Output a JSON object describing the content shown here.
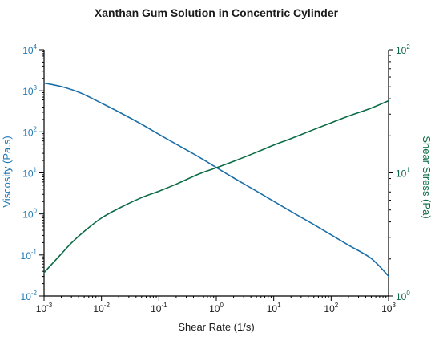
{
  "chart_data": {
    "type": "line",
    "title": "Xanthan Gum Solution in Concentric Cylinder",
    "xlabel": "Shear Rate (1/s)",
    "ylabel_left": "Viscosity (Pa.s)",
    "ylabel_right": "Shear Stress (Pa)",
    "x_scale": "log",
    "y_left_scale": "log",
    "y_right_scale": "log",
    "xlim": [
      0.001,
      1000
    ],
    "ylim_left": [
      0.01,
      10000
    ],
    "ylim_right": [
      1,
      100
    ],
    "x_ticks": [
      {
        "base": "10",
        "exp": "-3",
        "value": 0.001
      },
      {
        "base": "10",
        "exp": "-2",
        "value": 0.01
      },
      {
        "base": "10",
        "exp": "-1",
        "value": 0.1
      },
      {
        "base": "10",
        "exp": "0",
        "value": 1
      },
      {
        "base": "10",
        "exp": "1",
        "value": 10
      },
      {
        "base": "10",
        "exp": "2",
        "value": 100
      },
      {
        "base": "10",
        "exp": "3",
        "value": 1000
      }
    ],
    "y_left_ticks": [
      {
        "base": "10",
        "exp": "4",
        "value": 10000
      },
      {
        "base": "10",
        "exp": "3",
        "value": 1000
      },
      {
        "base": "10",
        "exp": "2",
        "value": 100
      },
      {
        "base": "10",
        "exp": "1",
        "value": 10
      },
      {
        "base": "10",
        "exp": "0",
        "value": 1
      },
      {
        "base": "10",
        "exp": "-1",
        "value": 0.1
      },
      {
        "base": "10",
        "exp": "-2",
        "value": 0.01
      }
    ],
    "y_right_ticks": [
      {
        "base": "10",
        "exp": "2",
        "value": 100
      },
      {
        "base": "10",
        "exp": "1",
        "value": 10
      },
      {
        "base": "10",
        "exp": "0",
        "value": 1
      }
    ],
    "grid": false,
    "colors": {
      "left_axis": "#1f78b4",
      "right_axis": "#0b6b45",
      "axes": "#000000",
      "title": "#1a1a1a"
    },
    "series": [
      {
        "axis": "left",
        "color": "#1b6fa8",
        "x": [
          0.001,
          0.002,
          0.003,
          0.005,
          0.01,
          0.02,
          0.05,
          0.1,
          0.2,
          0.5,
          1,
          2,
          5,
          10,
          20,
          50,
          100,
          200,
          500,
          1000
        ],
        "y": [
          1550,
          1270,
          1070,
          810,
          500,
          306,
          153,
          87,
          50,
          24.3,
          13.5,
          7.55,
          3.6,
          2.03,
          1.15,
          0.55,
          0.31,
          0.174,
          0.082,
          0.0305
        ]
      },
      {
        "axis": "right",
        "color": "#0b6b45",
        "x": [
          0.001,
          0.002,
          0.003,
          0.005,
          0.01,
          0.02,
          0.05,
          0.1,
          0.2,
          0.5,
          1,
          2,
          5,
          10,
          20,
          50,
          100,
          200,
          500,
          1000
        ],
        "y": [
          1.55,
          2.2,
          2.7,
          3.35,
          4.3,
          5.15,
          6.3,
          7.1,
          8.1,
          9.8,
          11.0,
          12.4,
          14.7,
          16.8,
          19.0,
          22.5,
          25.5,
          28.9,
          33.6,
          38.5
        ]
      }
    ]
  }
}
